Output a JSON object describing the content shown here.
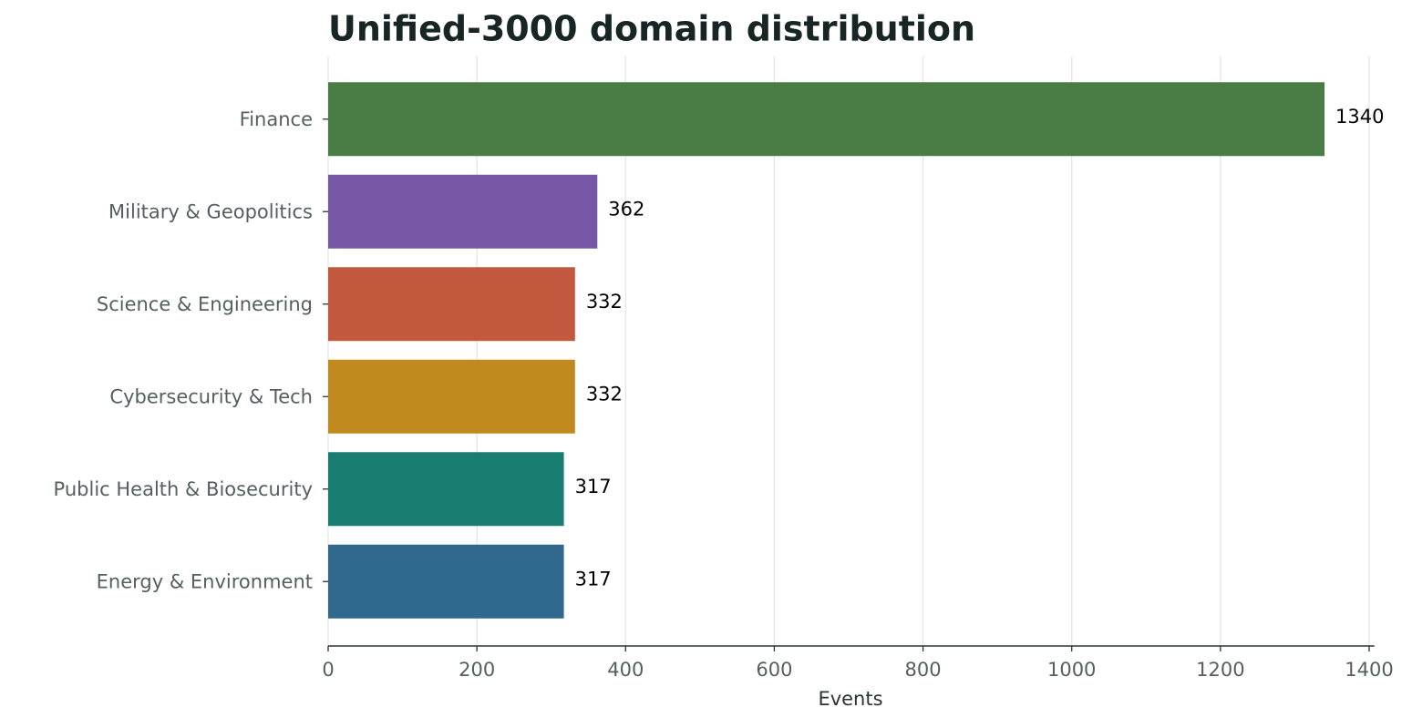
{
  "chart_data": {
    "type": "barh",
    "title": "Unified-3000 domain distribution",
    "x_label": "Events",
    "categories": [
      "Finance",
      "Military & Geopolitics",
      "Science & Engineering",
      "Cybersecurity & Tech",
      "Public Health & Biosecurity",
      "Energy & Environment"
    ],
    "values": [
      1340,
      362,
      332,
      332,
      317,
      317
    ],
    "colors": [
      "#4a7c45",
      "#7657a5",
      "#c2583d",
      "#c08a1e",
      "#1a7d72",
      "#30698d"
    ],
    "xlim": [
      0,
      1407
    ],
    "xticks": [
      0,
      200,
      400,
      600,
      800,
      1000,
      1200,
      1400
    ],
    "grid": true
  }
}
